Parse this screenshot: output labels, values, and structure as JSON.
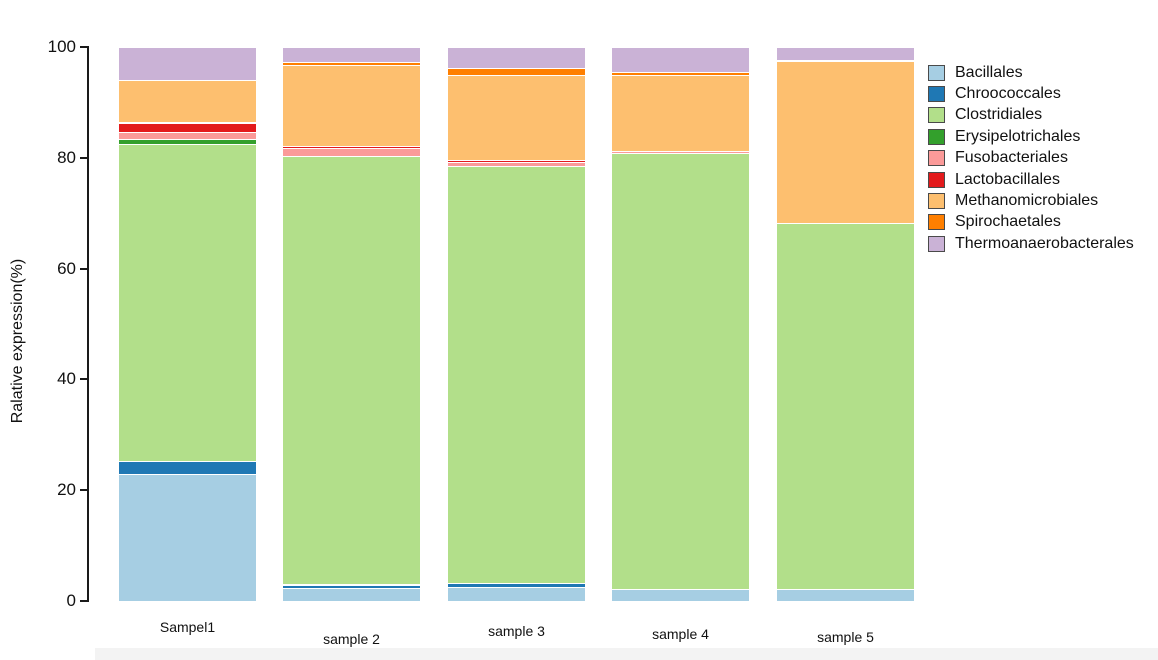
{
  "chart_data": {
    "type": "bar",
    "stacked": true,
    "title": "",
    "ylabel": "Ralative expression(%)",
    "ylim": [
      0,
      100
    ],
    "yticks": [
      0,
      20,
      40,
      60,
      80,
      100
    ],
    "grid": false,
    "legend_position": "right",
    "background_color": "#ffffff",
    "categories": [
      "Sampel1",
      "sample 2",
      "sample 3",
      "sample 4",
      "sample 5"
    ],
    "series": [
      {
        "name": "Bacillales",
        "color": "#a6cee3",
        "values": [
          23.0,
          2.3,
          2.5,
          2.2,
          2.2
        ]
      },
      {
        "name": "Chroococcales",
        "color": "#1f78b4",
        "values": [
          2.3,
          0.7,
          0.7,
          0.0,
          0.0
        ]
      },
      {
        "name": "Clostridiales",
        "color": "#b2df8a",
        "values": [
          57.2,
          77.4,
          75.3,
          78.7,
          66.0
        ]
      },
      {
        "name": "Erysipelotrichales",
        "color": "#33a02c",
        "values": [
          0.9,
          0.0,
          0.0,
          0.0,
          0.0
        ]
      },
      {
        "name": "Fusobacteriales",
        "color": "#fb9a99",
        "values": [
          1.3,
          1.4,
          0.7,
          0.4,
          0.0
        ]
      },
      {
        "name": "Lactobacillales",
        "color": "#e31a1c",
        "values": [
          1.7,
          0.4,
          0.4,
          0.0,
          0.0
        ]
      },
      {
        "name": "Methanomicrobiales",
        "color": "#fdbf6f",
        "values": [
          7.6,
          14.6,
          15.3,
          13.7,
          29.4
        ]
      },
      {
        "name": "Spirochaetales",
        "color": "#ff7f00",
        "values": [
          0.0,
          0.5,
          1.3,
          0.5,
          0.0
        ]
      },
      {
        "name": "Thermoanaerobacterales",
        "color": "#cab2d6",
        "values": [
          6.0,
          2.7,
          3.8,
          4.5,
          2.4
        ]
      }
    ]
  }
}
